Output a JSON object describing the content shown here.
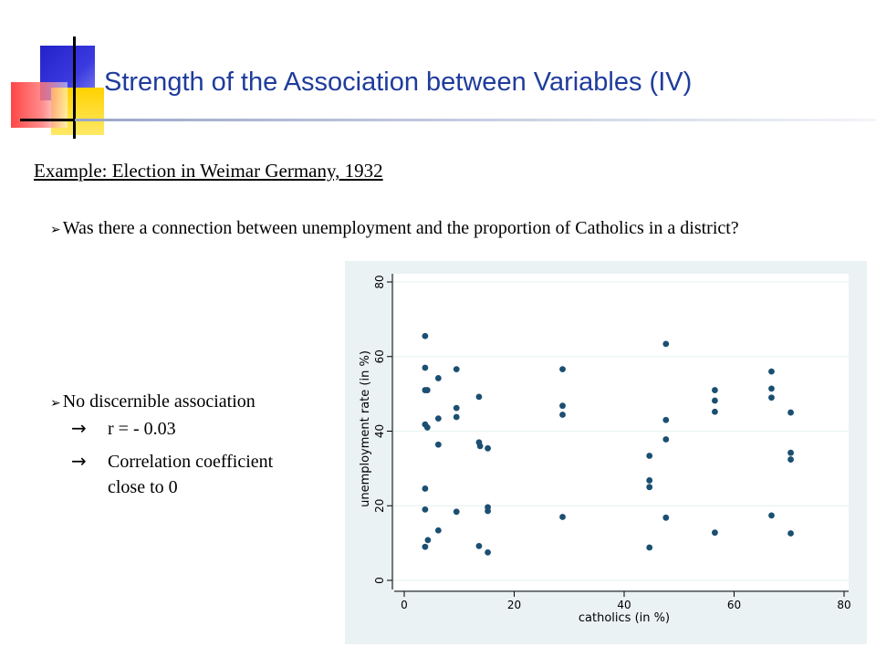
{
  "slide": {
    "title": "Strength of the Association between Variables (IV)",
    "subtitle": "Example: Election in Weimar Germany, 1932",
    "bullet1": "Was there a connection between unemployment and the proportion of Catholics in a district?",
    "bullet2": "No discernible association",
    "sub1": "r = - 0.03",
    "sub2": "Correlation coefficient",
    "sub3": "close to 0",
    "bullet_glyph": "➢",
    "arrow_glyph": "→"
  },
  "colors": {
    "title": "#1f3c9c",
    "chart_background": "#eaf2f3",
    "plot_background": "#ffffff",
    "marker": "#1b4f72",
    "grid": "#eaf2f3"
  },
  "chart_data": {
    "type": "scatter",
    "xlabel": "catholics (in %)",
    "ylabel": "unemployment rate (in %)",
    "xlim": [
      0,
      80
    ],
    "ylim": [
      0,
      80
    ],
    "xticks": [
      0,
      20,
      40,
      60,
      80
    ],
    "yticks": [
      0,
      20,
      40,
      60,
      80
    ],
    "grid": "horizontal",
    "r": -0.03,
    "points": [
      [
        3.8,
        65.5
      ],
      [
        3.8,
        57
      ],
      [
        3.8,
        51
      ],
      [
        4.2,
        51
      ],
      [
        3.8,
        41.8
      ],
      [
        4.2,
        41
      ],
      [
        3.8,
        24.6
      ],
      [
        3.8,
        19
      ],
      [
        3.8,
        9
      ],
      [
        4.3,
        10.8
      ],
      [
        6.2,
        54.2
      ],
      [
        6.2,
        43.4
      ],
      [
        6.2,
        36.4
      ],
      [
        6.2,
        13.4
      ],
      [
        9.5,
        56.6
      ],
      [
        9.5,
        46.2
      ],
      [
        9.5,
        43.8
      ],
      [
        9.5,
        18.4
      ],
      [
        13.6,
        49.2
      ],
      [
        13.6,
        37
      ],
      [
        13.8,
        36
      ],
      [
        13.6,
        9.2
      ],
      [
        15.2,
        35.4
      ],
      [
        15.2,
        19.6
      ],
      [
        15.2,
        18.6
      ],
      [
        15.2,
        7.5
      ],
      [
        28.8,
        56.6
      ],
      [
        28.8,
        46.8
      ],
      [
        28.8,
        44.4
      ],
      [
        28.8,
        17
      ],
      [
        44.6,
        33.4
      ],
      [
        44.6,
        26.8
      ],
      [
        44.6,
        25
      ],
      [
        44.6,
        8.8
      ],
      [
        47.6,
        63.4
      ],
      [
        47.6,
        43
      ],
      [
        47.6,
        37.8
      ],
      [
        47.6,
        16.8
      ],
      [
        56.5,
        51
      ],
      [
        56.5,
        48.2
      ],
      [
        56.5,
        45.2
      ],
      [
        56.5,
        12.8
      ],
      [
        66.8,
        56
      ],
      [
        66.8,
        51.4
      ],
      [
        66.8,
        49
      ],
      [
        66.8,
        17.4
      ],
      [
        70.3,
        45
      ],
      [
        70.3,
        34.2
      ],
      [
        70.3,
        32.4
      ],
      [
        70.3,
        12.6
      ]
    ]
  }
}
